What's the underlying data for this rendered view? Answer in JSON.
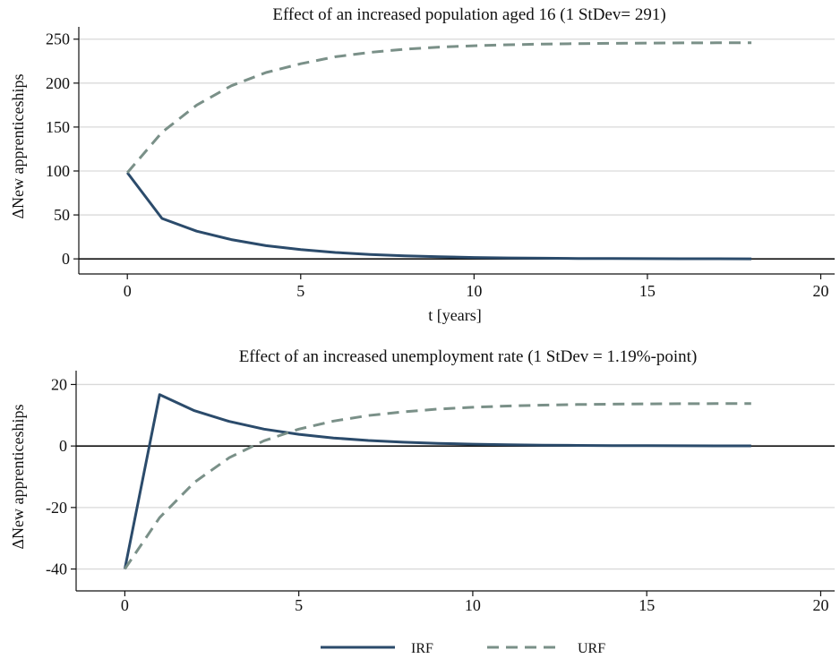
{
  "chart_data": [
    {
      "type": "line",
      "title": "Effect of an increased population aged 16 (1 StDev= 291)",
      "xlabel": "t [years]",
      "ylabel": "ΔNew apprenticeships",
      "xlim": [
        -1.4,
        20.4
      ],
      "ylim": [
        -8,
        264
      ],
      "xticks": [
        0,
        5,
        10,
        15,
        20
      ],
      "yticks": [
        0,
        50,
        100,
        150,
        200,
        250
      ],
      "grid": "horizontal",
      "series": [
        {
          "name": "IRF",
          "color": "#2b4b6b",
          "style": "solid",
          "x": [
            0,
            1,
            2,
            3,
            4,
            5,
            6,
            7,
            8,
            9,
            10,
            11,
            12,
            13,
            14,
            15,
            16,
            17,
            18
          ],
          "y": [
            98,
            46,
            31.5,
            22,
            15,
            10.5,
            7.3,
            5,
            3.5,
            2.4,
            1.6,
            1.1,
            0.8,
            0.5,
            0.35,
            0.25,
            0.17,
            0.12,
            0.08
          ]
        },
        {
          "name": "URF",
          "color": "#7a9088",
          "style": "dashed",
          "x": [
            0,
            1,
            2,
            3,
            4,
            5,
            6,
            7,
            8,
            9,
            10,
            11,
            12,
            13,
            14,
            15,
            16,
            17,
            18
          ],
          "y": [
            98,
            144,
            175,
            197,
            212,
            222,
            230,
            235,
            238.5,
            241,
            242.5,
            243.6,
            244.4,
            245,
            245.3,
            245.6,
            245.8,
            245.9,
            246
          ]
        }
      ]
    },
    {
      "type": "line",
      "title": "Effect of an increased unemployment rate (1 StDev = 1.19%-point)",
      "xlabel": "",
      "ylabel": "ΔNew apprenticeships",
      "xlim": [
        -1.4,
        20.4
      ],
      "ylim": [
        -44.5,
        24.5
      ],
      "xticks": [
        0,
        5,
        10,
        15,
        20
      ],
      "yticks": [
        -40,
        -20,
        0,
        20
      ],
      "grid": "horizontal",
      "series": [
        {
          "name": "IRF",
          "color": "#2b4b6b",
          "style": "solid",
          "x": [
            0,
            1,
            2,
            3,
            4,
            5,
            6,
            7,
            8,
            9,
            10,
            11,
            12,
            13,
            14,
            15,
            16,
            17,
            18
          ],
          "y": [
            -40,
            16.7,
            11.5,
            8,
            5.5,
            3.8,
            2.6,
            1.8,
            1.25,
            0.85,
            0.6,
            0.4,
            0.28,
            0.2,
            0.13,
            0.09,
            0.06,
            0.04,
            0.03
          ]
        },
        {
          "name": "URF",
          "color": "#7a9088",
          "style": "dashed",
          "x": [
            0,
            1,
            2,
            3,
            4,
            5,
            6,
            7,
            8,
            9,
            10,
            11,
            12,
            13,
            14,
            15,
            16,
            17,
            18
          ],
          "y": [
            -40,
            -23.3,
            -11.8,
            -3.8,
            1.7,
            5.5,
            8.1,
            9.9,
            11.1,
            12,
            12.6,
            13,
            13.3,
            13.5,
            13.6,
            13.7,
            13.75,
            13.8,
            13.8
          ]
        }
      ]
    }
  ],
  "legend": {
    "placement": "bottom",
    "items": [
      {
        "label": "IRF",
        "color": "#2b4b6b",
        "style": "solid"
      },
      {
        "label": "URF",
        "color": "#7a9088",
        "style": "dashed"
      }
    ]
  }
}
